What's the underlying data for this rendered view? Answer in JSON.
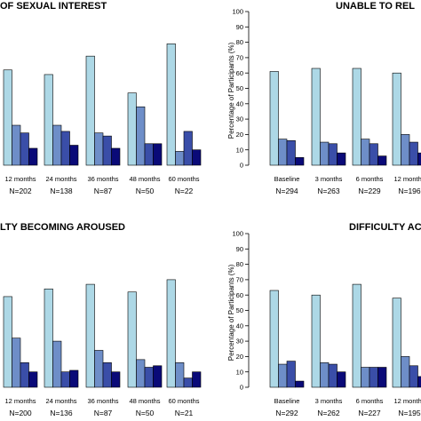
{
  "colors": [
    "#add8e6",
    "#6e8ec8",
    "#3a4ea8",
    "#0a0a78"
  ],
  "chart_data": [
    {
      "type": "bar",
      "panel": "top-left",
      "title": "OF SEXUAL INTEREST",
      "ylabel": "",
      "ylim": [
        0,
        100
      ],
      "categories": [
        "12 months",
        "24 months",
        "36 months",
        "48 months",
        "60 months"
      ],
      "n_labels": [
        "N=202",
        "N=138",
        "N=87",
        "N=50",
        "N=22"
      ],
      "series": [
        {
          "values": [
            62,
            59,
            71,
            47,
            79
          ]
        },
        {
          "values": [
            26,
            26,
            21,
            38,
            9
          ]
        },
        {
          "values": [
            21,
            22,
            19,
            14,
            22
          ]
        },
        {
          "values": [
            11,
            13,
            11,
            14,
            10
          ]
        }
      ]
    },
    {
      "type": "bar",
      "panel": "top-right",
      "title": "UNABLE TO REL",
      "ylabel": "Percentage of Participants (%)",
      "ylim": [
        0,
        100
      ],
      "yticks": [
        0,
        10,
        20,
        30,
        40,
        50,
        60,
        70,
        80,
        90,
        100
      ],
      "categories": [
        "Baseline",
        "3 months",
        "6 months",
        "12 months"
      ],
      "n_labels": [
        "N=294",
        "N=263",
        "N=229",
        "N=196"
      ],
      "series": [
        {
          "values": [
            61,
            63,
            63,
            60
          ]
        },
        {
          "values": [
            17,
            15,
            17,
            20
          ]
        },
        {
          "values": [
            16,
            14,
            14,
            15
          ]
        },
        {
          "values": [
            5,
            8,
            6,
            8
          ]
        }
      ]
    },
    {
      "type": "bar",
      "panel": "bottom-left",
      "title": "LTY BECOMING AROUSED",
      "ylabel": "",
      "ylim": [
        0,
        100
      ],
      "categories": [
        "12 months",
        "24 months",
        "36 months",
        "48 months",
        "60 months"
      ],
      "n_labels": [
        "N=200",
        "N=136",
        "N=87",
        "N=50",
        "N=21"
      ],
      "series": [
        {
          "values": [
            59,
            64,
            67,
            62,
            70
          ]
        },
        {
          "values": [
            32,
            30,
            24,
            18,
            16
          ]
        },
        {
          "values": [
            16,
            10,
            16,
            13,
            6
          ]
        },
        {
          "values": [
            10,
            11,
            10,
            14,
            10
          ]
        }
      ]
    },
    {
      "type": "bar",
      "panel": "bottom-right",
      "title": "DIFFICULTY AC",
      "ylabel": "Percentage of Participants (%)",
      "ylim": [
        0,
        100
      ],
      "yticks": [
        0,
        10,
        20,
        30,
        40,
        50,
        60,
        70,
        80,
        90,
        100
      ],
      "categories": [
        "Baseline",
        "3 months",
        "6 months",
        "12 months"
      ],
      "n_labels": [
        "N=292",
        "N=262",
        "N=227",
        "N=195"
      ],
      "series": [
        {
          "values": [
            63,
            60,
            67,
            58
          ]
        },
        {
          "values": [
            15,
            16,
            13,
            20
          ]
        },
        {
          "values": [
            17,
            15,
            13,
            14
          ]
        },
        {
          "values": [
            4,
            10,
            13,
            7
          ]
        }
      ]
    }
  ]
}
